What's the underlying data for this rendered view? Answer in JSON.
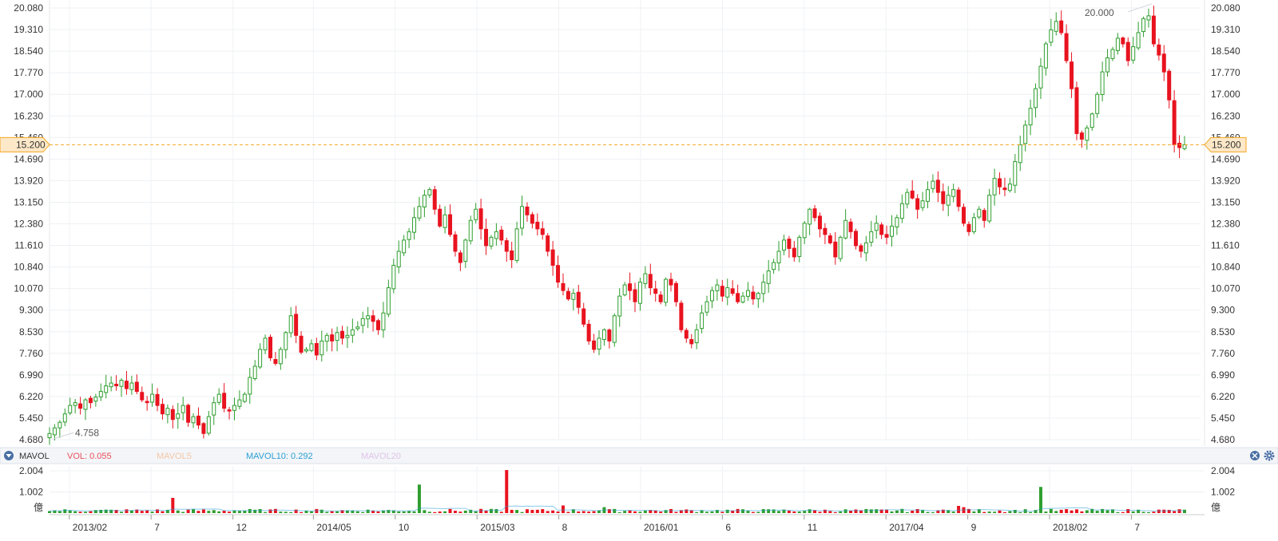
{
  "chart_data": {
    "type": "candlestick",
    "y_ticks": [
      "20.080",
      "19.310",
      "18.540",
      "17.770",
      "17.000",
      "16.230",
      "15.460",
      "14.690",
      "13.920",
      "13.150",
      "12.380",
      "11.610",
      "10.840",
      "10.070",
      "9.300",
      "8.530",
      "7.760",
      "6.990",
      "6.220",
      "5.450",
      "4.680"
    ],
    "ylim": [
      4.68,
      20.08
    ],
    "x_labels": [
      "2013/02",
      "7",
      "12",
      "2014/05",
      "10",
      "2015/03",
      "8",
      "2016/01",
      "6",
      "11",
      "2017/04",
      "9",
      "2018/02",
      "7"
    ],
    "x_label_positions": [
      0.028,
      0.092,
      0.156,
      0.219,
      0.283,
      0.347,
      0.411,
      0.475,
      0.539,
      0.603,
      0.667,
      0.731,
      0.795,
      0.859
    ],
    "current_price": 15.2,
    "current_price_label": "15.200",
    "max_annotation": {
      "label": "20.000",
      "value": 20.0
    },
    "min_annotation": {
      "label": "4.758",
      "value": 4.758
    },
    "closes": [
      4.9,
      5.1,
      5.3,
      5.6,
      5.9,
      6.0,
      5.8,
      6.1,
      6.0,
      6.2,
      6.4,
      6.6,
      6.7,
      6.6,
      6.8,
      6.5,
      6.7,
      6.4,
      6.1,
      6.0,
      6.3,
      5.9,
      5.6,
      5.8,
      5.4,
      5.6,
      5.9,
      5.3,
      5.5,
      5.2,
      4.9,
      5.5,
      6.0,
      6.3,
      5.8,
      5.7,
      5.9,
      6.1,
      6.3,
      6.9,
      7.3,
      7.9,
      8.3,
      7.6,
      7.4,
      7.9,
      8.5,
      9.1,
      8.4,
      7.8,
      7.9,
      8.1,
      7.7,
      8.2,
      8.4,
      8.2,
      8.5,
      8.3,
      8.4,
      8.6,
      8.7,
      9.0,
      9.1,
      8.9,
      8.6,
      9.2,
      10.1,
      10.9,
      11.4,
      11.8,
      12.1,
      12.6,
      13.0,
      13.4,
      13.6,
      12.9,
      12.3,
      12.7,
      12.0,
      11.4,
      11.0,
      11.8,
      12.5,
      12.9,
      12.2,
      11.6,
      11.9,
      12.1,
      11.8,
      11.4,
      11.1,
      12.2,
      13.0,
      12.7,
      12.4,
      12.2,
      12.0,
      11.4,
      10.9,
      10.3,
      10.0,
      9.7,
      9.9,
      9.4,
      8.8,
      8.2,
      7.9,
      8.3,
      8.6,
      8.2,
      9.1,
      9.8,
      10.2,
      10.0,
      9.6,
      10.3,
      10.6,
      10.1,
      9.9,
      9.6,
      10.4,
      10.2,
      9.6,
      8.6,
      8.3,
      8.1,
      8.6,
      9.2,
      9.6,
      10.0,
      10.2,
      9.8,
      10.1,
      9.9,
      9.6,
      9.8,
      10.0,
      9.7,
      9.9,
      10.3,
      10.7,
      11.0,
      11.4,
      11.8,
      11.5,
      11.2,
      11.9,
      12.4,
      12.9,
      12.6,
      12.2,
      12.0,
      11.7,
      11.2,
      11.9,
      12.5,
      12.1,
      11.6,
      11.4,
      11.7,
      12.1,
      12.4,
      12.0,
      11.9,
      12.3,
      12.6,
      13.1,
      13.5,
      13.3,
      12.9,
      13.2,
      13.6,
      13.9,
      13.5,
      13.1,
      13.4,
      13.6,
      13.0,
      12.4,
      12.1,
      12.6,
      12.9,
      12.5,
      13.4,
      14.0,
      13.7,
      13.6,
      13.8,
      14.6,
      15.2,
      15.9,
      16.5,
      17.2,
      18.0,
      18.8,
      19.3,
      19.6,
      19.2,
      18.2,
      17.2,
      15.6,
      15.4,
      15.8,
      16.3,
      17.0,
      17.8,
      18.3,
      18.6,
      19.0,
      18.8,
      18.2,
      18.7,
      19.2,
      19.7,
      19.8,
      18.8,
      18.4,
      17.8,
      16.8,
      15.2,
      15.1,
      15.2
    ],
    "volume_ticks": [
      "2.004",
      "1.002",
      "億"
    ],
    "vlim": [
      0,
      2.004
    ],
    "volume_spikes": [
      {
        "i": 24,
        "v": 0.72
      },
      {
        "i": 72,
        "v": 1.35
      },
      {
        "i": 89,
        "v": 2.04
      },
      {
        "i": 100,
        "v": 0.36
      },
      {
        "i": 177,
        "v": 0.34
      },
      {
        "i": 193,
        "v": 1.24
      },
      {
        "i": 178,
        "v": 0.28
      },
      {
        "i": 108,
        "v": 0.28
      }
    ],
    "up_color": "#2e9e2e",
    "down_color": "#e8131f"
  },
  "legend": {
    "indicator": "MAVOL",
    "vol": "VOL: 0.055",
    "mavol5": "MAVOL5",
    "mavol10": "MAVOL10: 0.292",
    "mavol20": "MAVOL20"
  },
  "colors": {
    "price_line": "#f5a623",
    "vol_label": "#e8505b",
    "mavol5": "#f4c7a6",
    "mavol10": "#2a9fd6",
    "mavol20": "#e0c4e8"
  },
  "icons": {
    "collapse": "triangle-down-icon",
    "close": "close-icon",
    "settings": "gear-icon"
  }
}
